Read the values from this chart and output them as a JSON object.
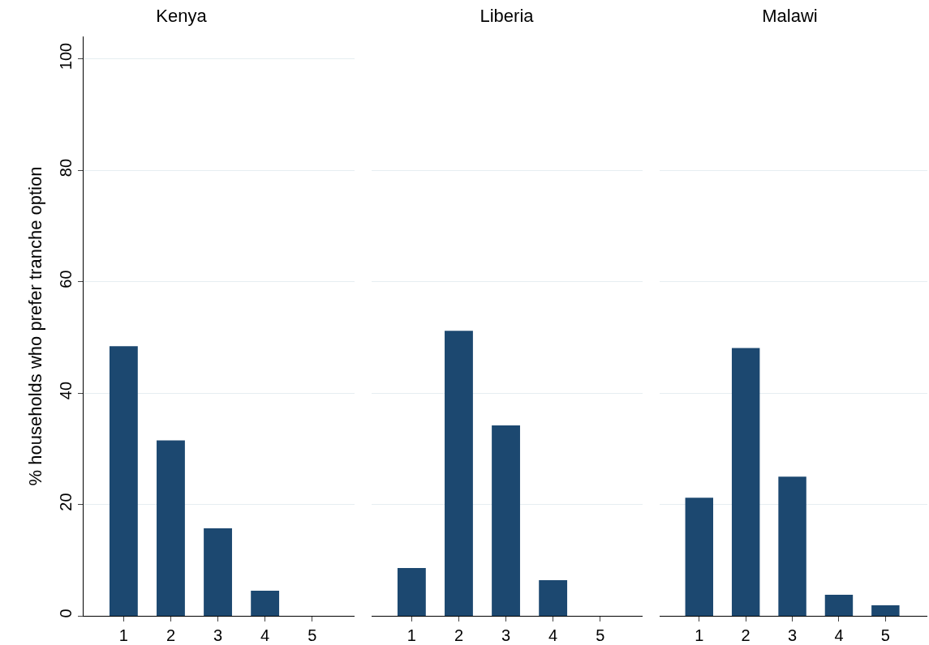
{
  "chart_data": [
    {
      "type": "bar",
      "title": "Kenya",
      "ylabel": "% households who prefer tranche option",
      "categories": [
        "1",
        "2",
        "3",
        "4",
        "5"
      ],
      "values": [
        48.4,
        31.5,
        15.7,
        4.5,
        0
      ],
      "color": "#1c4870",
      "ylim": [
        0,
        104
      ],
      "yticks": [
        0,
        20,
        40,
        60,
        80,
        100
      ],
      "grid": "y"
    },
    {
      "type": "bar",
      "title": "Liberia",
      "categories": [
        "1",
        "2",
        "3",
        "4",
        "5"
      ],
      "values": [
        8.6,
        51.2,
        34.2,
        6.4,
        0
      ],
      "color": "#1c4870",
      "ylim": [
        0,
        100
      ],
      "yticks": [
        0,
        20,
        40,
        60,
        80,
        100
      ],
      "grid": "y",
      "tick_labels": "x"
    },
    {
      "type": "bar",
      "title": "Malawi",
      "categories": [
        "1",
        "2",
        "3",
        "4",
        "5"
      ],
      "values": [
        21.2,
        48.1,
        25.0,
        3.8,
        1.9
      ],
      "color": "#1c4870",
      "ylim": [
        0,
        100
      ],
      "yticks": [
        0,
        20,
        40,
        60,
        80,
        100
      ],
      "grid": "y",
      "tick_labels": "x"
    }
  ]
}
